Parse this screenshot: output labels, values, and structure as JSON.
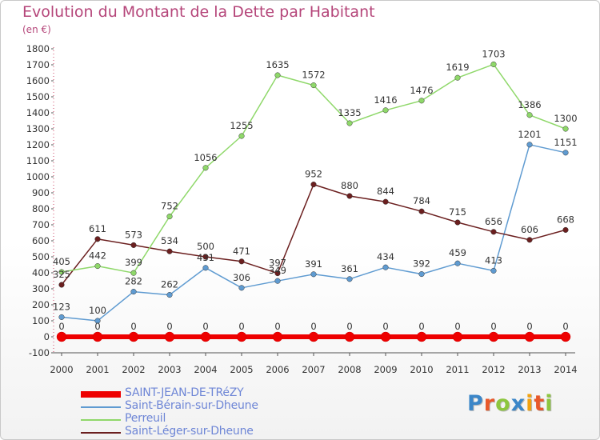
{
  "header": {
    "title": "Evolution du Montant de la Dette par Habitant",
    "subtitle": "(en €)"
  },
  "logo": {
    "text": "Proxiti",
    "colors": [
      "#3b86c8",
      "#e8582a",
      "#8dc63f",
      "#3b86c8",
      "#f2a20f",
      "#e8582a",
      "#8dc63f"
    ]
  },
  "chart_data": {
    "type": "line",
    "title": "Evolution du Montant de la Dette par Habitant",
    "subtitle": "(en €)",
    "xlabel": "",
    "ylabel": "",
    "ylim": [
      -100,
      1800
    ],
    "yticks": [
      -100,
      0,
      100,
      200,
      300,
      400,
      500,
      600,
      700,
      800,
      900,
      1000,
      1100,
      1200,
      1300,
      1400,
      1500,
      1600,
      1700,
      1800
    ],
    "x": [
      "2000",
      "2001",
      "2002",
      "2003",
      "2004",
      "2005",
      "2006",
      "2007",
      "2008",
      "2009",
      "2010",
      "2011",
      "2012",
      "2013",
      "2014"
    ],
    "grid": false,
    "legend": "bottom-left",
    "series": [
      {
        "name": "SAINT-JEAN-DE-TRéZY",
        "color": "#ee0000",
        "values": [
          0,
          0,
          0,
          0,
          0,
          0,
          0,
          0,
          0,
          0,
          0,
          0,
          0,
          0,
          0
        ]
      },
      {
        "name": "Saint-Bérain-sur-Dheune",
        "color": "#5f9bd1",
        "values": [
          123,
          100,
          282,
          262,
          431,
          306,
          349,
          391,
          361,
          434,
          392,
          459,
          413,
          1201,
          1151
        ]
      },
      {
        "name": "Perreuil",
        "color": "#8fd86a",
        "values": [
          405,
          442,
          399,
          752,
          1056,
          1255,
          1635,
          1572,
          1335,
          1416,
          1476,
          1619,
          1703,
          1386,
          1300
        ]
      },
      {
        "name": "Saint-Léger-sur-Dheune",
        "color": "#6b1f1f",
        "values": [
          325,
          611,
          573,
          534,
          500,
          471,
          397,
          952,
          880,
          844,
          784,
          715,
          656,
          606,
          668
        ]
      }
    ]
  }
}
